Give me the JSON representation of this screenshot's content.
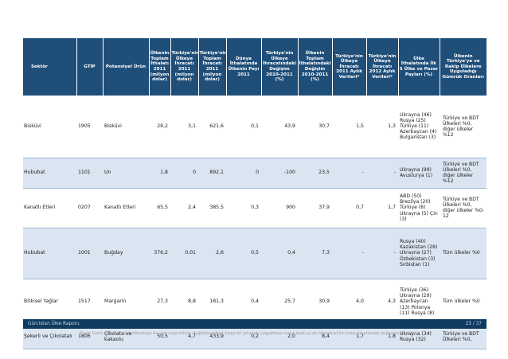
{
  "table": {
    "headers": [
      "Sektör",
      "GTİP",
      "Potansiyel Ürün",
      "Ülkenin Toplam İthalatı 2011 (milyon dolar)",
      "Türkiye'nin Ülkeye İhracatı 2011 (milyon dolar)",
      "Türkiye'nin Toplam İhracatı 2011 (milyon dolar)",
      "Dünya İthalatında Ülkenin Payı 2011",
      "Türkiye'nin Ülkeye İhracatındaki Değişim 2010-2011 (%)",
      "Ülkenin Toplam İthalatındaki Değişim 2010-2011 (%)",
      "Türkiye'nin Ülkeye İhracatı 2011 Aylık Verileri*",
      "Türkiye'nin Ülkeye İhracatı 2012 Aylık Verileri*",
      "Ülke İthalatında İlk 5 Ülke ve Pazar Payları (%)",
      "Ülkenin Türkiye'ye ve Rakip Ülkelere Uyguladığı Gümrük Oranları"
    ],
    "rows": [
      {
        "sector": "Bisküvi",
        "gtip": "1905",
        "product": "Bisküvi",
        "v1": "29,2",
        "v2": "3,1",
        "v3": "621,6",
        "v4": "0,1",
        "v5": "43,9",
        "v6": "30,7",
        "v7": "1,5",
        "v8": "1,3",
        "countries": "Ukrayna (46) Rusya (25) Türkiye (11) Azerbaycan (4) Bulgaristan (3)",
        "conditions": "Türkiye ve BDT Ülkeleri %0, diğer ülkeler %12"
      },
      {
        "sector": "Hububat",
        "gtip": "1101",
        "product": "Un",
        "v1": "1,8",
        "v2": "0",
        "v3": "892,1",
        "v4": "0",
        "v5": "-100",
        "v6": "23,5",
        "v7": "-",
        "v8": "-",
        "countries": "Ukrayna (99) Avusturya (1)",
        "conditions": "Türkiye ve BDT Ülkeleri %0, diğer ülkeler %12"
      },
      {
        "sector": "Kanatlı Etleri",
        "gtip": "0207",
        "product": "Kanatlı Etleri",
        "v1": "65,5",
        "v2": "2,4",
        "v3": "385,5",
        "v4": "0,3",
        "v5": "900",
        "v6": "37,9",
        "v7": "0,7",
        "v8": "1,7",
        "countries": "ABD (50) Brezilya (20) Türkiye (8) Ukrayna (5) Çin (3)",
        "conditions": "Türkiye ve BDT Ülkeleri %0, diğer ülkeler %0-12"
      },
      {
        "sector": "Hububat",
        "gtip": "1001",
        "product": "Buğday",
        "v1": "376,2",
        "v2": "0,01",
        "v3": "2,6",
        "v4": "0,5",
        "v5": "0,4",
        "v6": "7,3",
        "v7": "-",
        "v8": "-",
        "countries": "Rusya (40) Kazakistan (28) Ukrayna (27) Özbekistan (3) Sırbistan (1)",
        "conditions": "Tüm ülkeler %0"
      },
      {
        "sector": "Bitkisel Yağlar",
        "gtip": "1517",
        "product": "Margarin",
        "v1": "27,3",
        "v2": "8,8",
        "v3": "181,3",
        "v4": "0,4",
        "v5": "25,7",
        "v6": "30,9",
        "v7": "4,0",
        "v8": "4,3",
        "countries": "Türkiye (36) Ukrayna (29) Azerbaycan (13) Polonya (11) Rusya (8)",
        "conditions": "Tüm ülkeler %0"
      },
      {
        "sector": "Şekerli ve Çikolatalı",
        "gtip": "1806",
        "product": "Çikolata ve kakaolu",
        "v1": "50,5",
        "v2": "4,7",
        "v3": "433,9",
        "v4": "0,2",
        "v5": "2,0",
        "v6": "8,4",
        "v7": "1,7",
        "v8": "1,8",
        "countries": "Ukrayna (34) Rusya (32)",
        "conditions": "Türkiye ve BDT Ülkeleri %0,"
      }
    ]
  },
  "footer": {
    "left": "Gürcistan Ülke Raporu",
    "right": "23 / 37"
  },
  "source_note": "Trade Users - Kaynak gösterilmedikçe bu alan veya bölüm. Değildenemikler kamp bir yönünde çolgaltimas veriye buuli ya da teknemsel bir kamp bir ortamda değirmen sorabilir",
  "colors": {
    "header_bg": "#1f4e79",
    "alt_row_bg": "#dbe5f1",
    "footer_bg": "#0f3b60"
  }
}
